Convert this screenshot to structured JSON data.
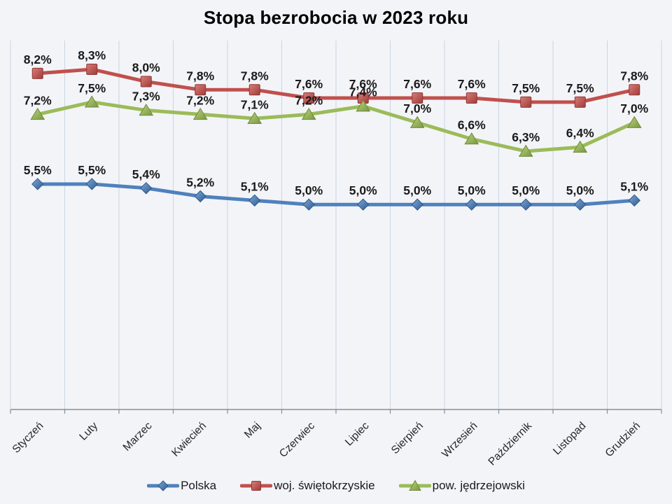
{
  "title": "Stopa bezrobocia w 2023 roku",
  "colors": {
    "background": "#f3f4f8",
    "gridline": "#c9d4e2",
    "axis": "#888e96",
    "label_text": "#1a1a1a",
    "month_text": "#262626"
  },
  "chart_data": {
    "type": "line",
    "title": "Stopa bezrobocia w 2023 roku",
    "categories": [
      "Styczeń",
      "Luty",
      "Marzec",
      "Kwiecień",
      "Maj",
      "Czerwiec",
      "Lipiec",
      "Sierpień",
      "Wrzesień",
      "Październik",
      "Listopad",
      "Grudzień"
    ],
    "series": [
      {
        "name": "Polska",
        "marker": "diamond",
        "color": "#4f81bd",
        "stroke_dark": "#2e5a8c",
        "grad_light": "#7fa8d9",
        "grad_dark": "#2f5b8e",
        "values": [
          5.5,
          5.5,
          5.4,
          5.2,
          5.1,
          5.0,
          5.0,
          5.0,
          5.0,
          5.0,
          5.0,
          5.1
        ],
        "labels": [
          "5,5%",
          "5,5%",
          "5,4%",
          "5,2%",
          "5,1%",
          "5,0%",
          "5,0%",
          "5,0%",
          "5,0%",
          "5,0%",
          "5,0%",
          "5,1%"
        ]
      },
      {
        "name": "woj. świętokrzyskie",
        "marker": "square",
        "color": "#c0504d",
        "stroke_dark": "#8e3835",
        "grad_light": "#da7d78",
        "grad_dark": "#9e3b38",
        "values": [
          8.2,
          8.3,
          8.0,
          7.8,
          7.8,
          7.6,
          7.6,
          7.6,
          7.6,
          7.5,
          7.5,
          7.8
        ],
        "labels": [
          "8,2%",
          "8,3%",
          "8,0%",
          "7,8%",
          "7,8%",
          "7,6%",
          "7,6%",
          "7,6%",
          "7,6%",
          "7,5%",
          "7,5%",
          "7,8%"
        ]
      },
      {
        "name": "pow. jędrzejowski",
        "marker": "triangle",
        "color": "#9bbb59",
        "stroke_dark": "#6e8a38",
        "grad_light": "#bcd47e",
        "grad_dark": "#789741",
        "values": [
          7.2,
          7.5,
          7.3,
          7.2,
          7.1,
          7.2,
          7.4,
          7.0,
          6.6,
          6.3,
          6.4,
          7.0
        ],
        "labels": [
          "7,2%",
          "7,5%",
          "7,3%",
          "7,2%",
          "7,1%",
          "7,2%",
          "7,4%",
          "7,0%",
          "6,6%",
          "6,3%",
          "6,4%",
          "7,0%"
        ]
      }
    ],
    "ylim": [
      0,
      9
    ],
    "xlabel": "",
    "ylabel": "",
    "grid": "vertical-only",
    "y_axis_labels_visible": false,
    "data_label_format": "comma-decimal-percent",
    "legend_position": "bottom"
  }
}
